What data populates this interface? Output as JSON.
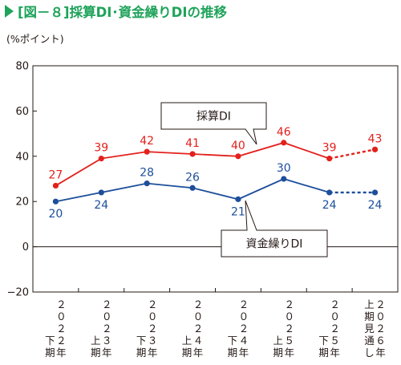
{
  "header": {
    "title": "[図－８]採算DI･資金繰りDIの推移",
    "title_color": "#20a35b",
    "unit_label": "(%ポイント)"
  },
  "chart_data": {
    "type": "line",
    "ylim": [
      -20,
      80
    ],
    "yticks": [
      "80",
      "60",
      "40",
      "20",
      "0",
      "−20"
    ],
    "ytick_values": [
      80,
      60,
      40,
      20,
      0,
      -20
    ],
    "grid": false,
    "categories": [
      [
        "２",
        "０",
        "２",
        "２",
        "下",
        "期",
        "年"
      ],
      [
        "２",
        "０",
        "２",
        "３",
        "上",
        "期",
        "年"
      ],
      [
        "２",
        "０",
        "２",
        "３",
        "下",
        "期",
        "年"
      ],
      [
        "２",
        "０",
        "２",
        "４",
        "上",
        "期",
        "年"
      ],
      [
        "２",
        "０",
        "２",
        "４",
        "下",
        "期",
        "年"
      ],
      [
        "２",
        "０",
        "２",
        "５",
        "上",
        "期",
        "年"
      ],
      [
        "２",
        "０",
        "２",
        "５",
        "下",
        "期",
        "年"
      ],
      [
        "２",
        "０",
        "２",
        "６",
        "上",
        "期",
        "見",
        "通",
        "し",
        "年"
      ]
    ],
    "series": [
      {
        "name": "採算DI",
        "color": "#e3211c",
        "values": [
          27,
          39,
          42,
          41,
          40,
          46,
          39,
          43
        ],
        "labels": [
          "27",
          "39",
          "42",
          "41",
          "40",
          "46",
          "39",
          "43"
        ],
        "dashed_from_index": 6
      },
      {
        "name": "資金繰りDI",
        "color": "#1d4e9b",
        "values": [
          20,
          24,
          28,
          26,
          21,
          30,
          24,
          24
        ],
        "labels": [
          "20",
          "24",
          "28",
          "26",
          "21",
          "30",
          "24",
          "24"
        ],
        "dashed_from_index": 6
      }
    ]
  }
}
